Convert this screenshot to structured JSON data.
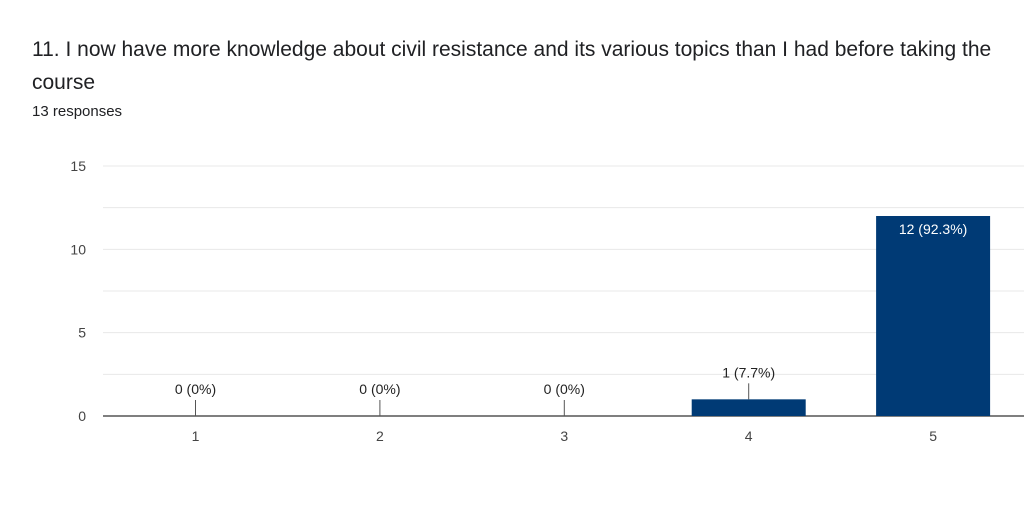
{
  "question": {
    "title": "11. I now have more knowledge about civil resistance and its various topics than I had before taking the course",
    "responses": "13 responses"
  },
  "colors": {
    "bar": "#003a75",
    "grid": "#e8e8e8",
    "axis": "#333333"
  },
  "chart_data": {
    "type": "bar",
    "categories": [
      "1",
      "2",
      "3",
      "4",
      "5"
    ],
    "values": [
      0,
      0,
      0,
      1,
      12
    ],
    "data_labels": [
      "0 (0%)",
      "0 (0%)",
      "0 (0%)",
      "1 (7.7%)",
      "12 (92.3%)"
    ],
    "yticks": [
      0,
      5,
      10,
      15
    ],
    "ylim": [
      0,
      15
    ],
    "grid": true,
    "legend": "none"
  }
}
